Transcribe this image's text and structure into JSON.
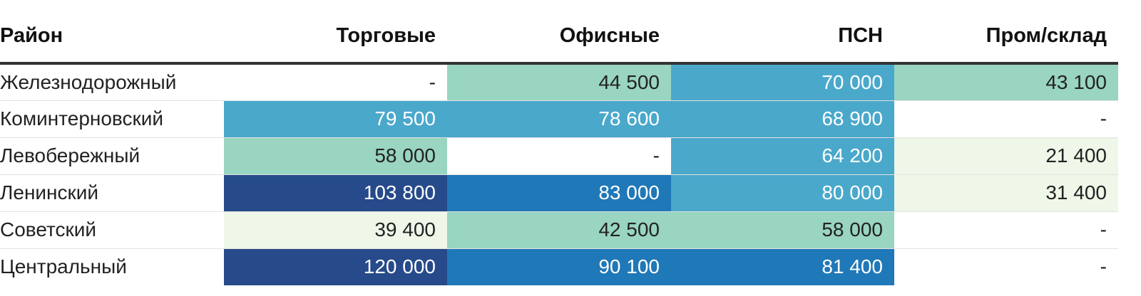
{
  "chart_data": {
    "type": "table",
    "columns": [
      "Район",
      "Торговые",
      "Офисные",
      "ПСН",
      "Пром/склад"
    ],
    "rows": [
      {
        "district": "Железнодорожный",
        "values": [
          null,
          44500,
          70000,
          43100
        ]
      },
      {
        "district": "Коминтерновский",
        "values": [
          79500,
          78600,
          68900,
          null
        ]
      },
      {
        "district": "Левобережный",
        "values": [
          58000,
          null,
          64200,
          21400
        ]
      },
      {
        "district": "Ленинский",
        "values": [
          103800,
          83000,
          80000,
          31400
        ]
      },
      {
        "district": "Советский",
        "values": [
          39400,
          42500,
          58000,
          null
        ]
      },
      {
        "district": "Центральный",
        "values": [
          120000,
          90100,
          81400,
          null
        ]
      }
    ],
    "missing_label": "-",
    "color_scale": {
      "stops": [
        {
          "min": 0,
          "color": "#eef7e8",
          "text": "#222222"
        },
        {
          "min": 40000,
          "color": "#99d5c0",
          "text": "#222222"
        },
        {
          "min": 60000,
          "color": "#4aa8cb",
          "text": "#ffffff"
        },
        {
          "min": 81000,
          "color": "#1f78b7",
          "text": "#ffffff"
        },
        {
          "min": 95000,
          "color": "#264a8a",
          "text": "#ffffff"
        }
      ],
      "missing_color": "#ffffff"
    }
  }
}
